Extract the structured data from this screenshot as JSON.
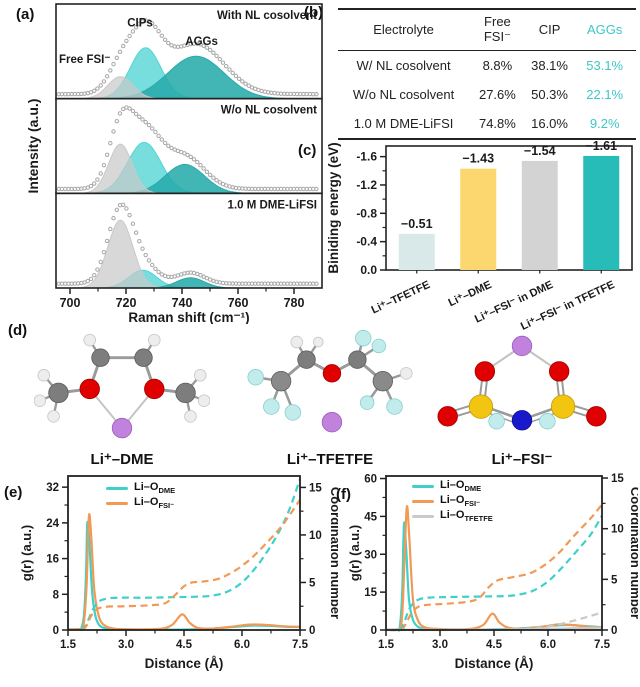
{
  "panel_labels": {
    "a": "(a)",
    "b": "(b)",
    "c": "(c)",
    "d": "(d)",
    "e": "(e)",
    "f": "(f)"
  },
  "table": {
    "headers": [
      "Electrolyte",
      "Free\nFSI⁻",
      "CIP",
      "AGGs"
    ],
    "rows": [
      [
        "W/ NL cosolvent",
        "8.8%",
        "38.1%",
        "53.1%"
      ],
      [
        "W/o NL cosolvent",
        "27.6%",
        "50.3%",
        "22.1%"
      ],
      [
        "1.0 M DME-LiFSI",
        "74.8%",
        "16.0%",
        "9.2%"
      ]
    ],
    "accent_color": "#3ec6c6"
  },
  "molecules": {
    "labels": [
      "Li⁺–DME",
      "Li⁺–TFETFE",
      "Li⁺–FSI⁻"
    ],
    "atom_colors": {
      "carbon": "#7d7d7d",
      "hydrogen": "#ededed",
      "oxygen": "#e00000",
      "lithium": "#c182de",
      "fluorine": "#c2ecec",
      "sulfur": "#f2c511",
      "nitrogen": "#1919cc"
    }
  },
  "chart_data": [
    {
      "id": "raman",
      "type": "area",
      "xlabel": "Raman shift (cm⁻¹)",
      "ylabel": "Intensity (a.u.)",
      "x_range": [
        695,
        790
      ],
      "x_ticks": [
        700,
        720,
        740,
        760,
        780
      ],
      "x_minor_ticks": [
        710,
        730,
        750,
        770
      ],
      "subplots": [
        {
          "label": "With NL cosolvent",
          "label_color": "#18a7a7",
          "envelope_scale": 1.18,
          "peaks": [
            {
              "name": "Free FSI⁻",
              "center": 718,
              "amp": 0.26,
              "sigma": 4.5,
              "color": "#c9c9c9",
              "opacity": 0.72
            },
            {
              "name": "CIPs",
              "center": 727,
              "amp": 0.6,
              "sigma": 5.5,
              "color": "#55d4d4",
              "opacity": 0.8
            },
            {
              "name": "AGGs",
              "center": 745,
              "amp": 0.5,
              "sigma": 10,
              "color": "#28abab",
              "opacity": 0.88
            }
          ],
          "annotations": [
            {
              "text": "Free FSI⁻",
              "color": "#bdbdbd",
              "x": 696,
              "y": 0.42,
              "anchor": "start"
            },
            {
              "text": "CIPs",
              "color": "#3fcfcf",
              "x": 725,
              "y": 0.85,
              "anchor": "middle"
            },
            {
              "text": "AGGs",
              "color": "#17a0a0",
              "x": 747,
              "y": 0.63,
              "anchor": "middle"
            }
          ]
        },
        {
          "label": "W/o NL cosolvent",
          "label_color": "#b5b5b5",
          "envelope_scale": 1.12,
          "peaks": [
            {
              "name": "Free FSI⁻",
              "center": 718,
              "amp": 0.58,
              "sigma": 4.2,
              "color": "#c9c9c9",
              "opacity": 0.72
            },
            {
              "name": "CIPs",
              "center": 726.5,
              "amp": 0.6,
              "sigma": 6,
              "color": "#55d4d4",
              "opacity": 0.8
            },
            {
              "name": "AGGs",
              "center": 741,
              "amp": 0.34,
              "sigma": 7,
              "color": "#28abab",
              "opacity": 0.88
            }
          ],
          "annotations": []
        },
        {
          "label": "1.0 M DME-LiFSI",
          "label_color": "#f5b305",
          "envelope_scale": 1.08,
          "peaks": [
            {
              "name": "Free FSI⁻",
              "center": 718,
              "amp": 0.8,
              "sigma": 4.5,
              "color": "#c9c9c9",
              "opacity": 0.72
            },
            {
              "name": "CIPs",
              "center": 726,
              "amp": 0.21,
              "sigma": 5,
              "color": "#55d4d4",
              "opacity": 0.8
            },
            {
              "name": "AGGs",
              "center": 743,
              "amp": 0.12,
              "sigma": 5,
              "color": "#28abab",
              "opacity": 0.88
            }
          ],
          "annotations": []
        }
      ]
    },
    {
      "id": "binding",
      "type": "bar",
      "ylabel": "Biniding energy (eV)",
      "categories": [
        "Li⁺–TFETFE",
        "Li⁺–DME",
        "Li⁺–FSI⁻ in DME",
        "Li⁺–FSI⁻ in TFETFE"
      ],
      "values": [
        -0.51,
        -1.43,
        -1.54,
        -1.61
      ],
      "value_labels": [
        "−0.51",
        "−1.43",
        "−1.54",
        "−1.61"
      ],
      "bar_colors": [
        "#d9e9e9",
        "#fcd66e",
        "#d3d3d3",
        "#28bcb8"
      ],
      "label_colors": [
        "#aecfd2",
        "#f6c233",
        "#a9a9a9",
        "#0fada9"
      ],
      "y_ticks": [
        "0.0",
        "-0.4",
        "-0.8",
        "-1.2",
        "-1.6"
      ],
      "y_tick_values": [
        0,
        0.4,
        0.8,
        1.2,
        1.6
      ],
      "y_range": [
        0,
        1.75
      ]
    },
    {
      "id": "rdf_e",
      "type": "line",
      "xlabel": "Distance (Å)",
      "ylabel": "g(r) (a.u.)",
      "ylabel_right": "Coordination number",
      "x_range": [
        1.5,
        7.5
      ],
      "x_ticks": [
        "1.5",
        "3.0",
        "4.5",
        "6.0",
        "7.5"
      ],
      "y_left_ticks": [
        0,
        8,
        16,
        24,
        32
      ],
      "y_left_range": [
        0,
        34.5
      ],
      "y_right_ticks": [
        0,
        5,
        10,
        15
      ],
      "y_right_range": [
        0,
        16.2
      ],
      "legend": [
        {
          "main": "Li–O",
          "sub": "DME",
          "color": "#3fd0c9"
        },
        {
          "main": "Li–O",
          "sub": "FSI⁻",
          "color": "#f09a55"
        }
      ],
      "series": [
        {
          "name": "g(r) Li-O DME",
          "axis": "left",
          "style": "solid",
          "color": "#3fd0c9",
          "points": [
            [
              1.5,
              0.15
            ],
            [
              1.75,
              0.2
            ],
            [
              1.85,
              0.5
            ],
            [
              1.92,
              4
            ],
            [
              1.97,
              14
            ],
            [
              2.0,
              24
            ],
            [
              2.05,
              20
            ],
            [
              2.12,
              9
            ],
            [
              2.2,
              3.5
            ],
            [
              2.3,
              1.2
            ],
            [
              2.45,
              0.4
            ],
            [
              2.7,
              0.15
            ],
            [
              3.5,
              0.1
            ],
            [
              4.5,
              0.1
            ],
            [
              5.2,
              0.3
            ],
            [
              5.8,
              0.7
            ],
            [
              6.3,
              1.0
            ],
            [
              6.8,
              0.9
            ],
            [
              7.2,
              0.7
            ],
            [
              7.5,
              0.7
            ]
          ]
        },
        {
          "name": "g(r) Li-O FSI⁻",
          "axis": "left",
          "style": "solid",
          "color": "#f09a55",
          "points": [
            [
              1.5,
              0.15
            ],
            [
              1.8,
              0.2
            ],
            [
              1.9,
              1
            ],
            [
              1.98,
              10
            ],
            [
              2.04,
              25.5
            ],
            [
              2.1,
              21
            ],
            [
              2.18,
              9
            ],
            [
              2.3,
              3
            ],
            [
              2.45,
              1
            ],
            [
              2.7,
              0.3
            ],
            [
              3.2,
              0.15
            ],
            [
              3.9,
              0.3
            ],
            [
              4.2,
              1.2
            ],
            [
              4.45,
              3.5
            ],
            [
              4.65,
              1.6
            ],
            [
              4.85,
              0.5
            ],
            [
              5.2,
              0.3
            ],
            [
              5.7,
              0.7
            ],
            [
              6.2,
              1.2
            ],
            [
              6.7,
              1.1
            ],
            [
              7.1,
              0.8
            ],
            [
              7.5,
              0.7
            ]
          ]
        },
        {
          "name": "CN Li-O DME",
          "axis": "right",
          "style": "dashed",
          "color": "#3fd0c9",
          "points": [
            [
              1.85,
              0
            ],
            [
              1.95,
              0.4
            ],
            [
              2.05,
              1.3
            ],
            [
              2.15,
              2.2
            ],
            [
              2.3,
              3.0
            ],
            [
              2.5,
              3.3
            ],
            [
              2.8,
              3.4
            ],
            [
              3.5,
              3.4
            ],
            [
              4.2,
              3.45
            ],
            [
              4.8,
              3.5
            ],
            [
              5.2,
              3.6
            ],
            [
              5.6,
              4.0
            ],
            [
              6.0,
              5.0
            ],
            [
              6.4,
              6.8
            ],
            [
              6.8,
              9.2
            ],
            [
              7.1,
              11.5
            ],
            [
              7.3,
              13.5
            ],
            [
              7.5,
              15.9
            ]
          ]
        },
        {
          "name": "CN Li-O FSI⁻",
          "axis": "right",
          "style": "dashed",
          "color": "#f09a55",
          "points": [
            [
              1.9,
              0
            ],
            [
              2.0,
              0.6
            ],
            [
              2.1,
              1.5
            ],
            [
              2.25,
              2.2
            ],
            [
              2.5,
              2.45
            ],
            [
              3.0,
              2.5
            ],
            [
              3.6,
              2.6
            ],
            [
              4.0,
              2.8
            ],
            [
              4.25,
              3.6
            ],
            [
              4.5,
              4.6
            ],
            [
              4.7,
              5.0
            ],
            [
              5.0,
              5.1
            ],
            [
              5.4,
              5.4
            ],
            [
              5.8,
              6.2
            ],
            [
              6.2,
              7.4
            ],
            [
              6.6,
              9.0
            ],
            [
              7.0,
              10.8
            ],
            [
              7.25,
              12.2
            ],
            [
              7.5,
              13.7
            ]
          ]
        }
      ]
    },
    {
      "id": "rdf_f",
      "type": "line",
      "xlabel": "Distance (Å)",
      "ylabel": "g(r) (a.u.)",
      "ylabel_right": "Coordination number",
      "x_range": [
        1.5,
        7.5
      ],
      "x_ticks": [
        "1.5",
        "3.0",
        "4.5",
        "6.0",
        "7.5"
      ],
      "y_left_ticks": [
        0,
        15,
        30,
        45,
        60
      ],
      "y_left_range": [
        0,
        61
      ],
      "y_right_ticks": [
        0,
        5,
        10,
        15
      ],
      "y_right_range": [
        0,
        15.2
      ],
      "legend": [
        {
          "main": "Li–O",
          "sub": "DME",
          "color": "#3fd0c9"
        },
        {
          "main": "Li–O",
          "sub": "FSI⁻",
          "color": "#f09a55"
        },
        {
          "main": "Li–O",
          "sub": "TFETFE",
          "color": "#c9c9c9"
        }
      ],
      "series": [
        {
          "name": "g(r) Li-O DME",
          "axis": "left",
          "style": "solid",
          "color": "#3fd0c9",
          "points": [
            [
              1.5,
              0.2
            ],
            [
              1.8,
              0.3
            ],
            [
              1.88,
              1
            ],
            [
              1.95,
              15
            ],
            [
              2.0,
              42
            ],
            [
              2.06,
              32
            ],
            [
              2.14,
              12
            ],
            [
              2.25,
              4
            ],
            [
              2.4,
              1.2
            ],
            [
              2.6,
              0.4
            ],
            [
              3.0,
              0.2
            ],
            [
              4.0,
              0.2
            ],
            [
              5.0,
              0.5
            ],
            [
              5.6,
              1.0
            ],
            [
              6.2,
              1.8
            ],
            [
              6.6,
              2.0
            ],
            [
              7.0,
              1.6
            ],
            [
              7.5,
              1.1
            ]
          ]
        },
        {
          "name": "g(r) Li-O FSI⁻",
          "axis": "left",
          "style": "solid",
          "color": "#f09a55",
          "points": [
            [
              1.5,
              0.2
            ],
            [
              1.85,
              0.3
            ],
            [
              1.95,
              6
            ],
            [
              2.02,
              30
            ],
            [
              2.08,
              49
            ],
            [
              2.15,
              36
            ],
            [
              2.25,
              12
            ],
            [
              2.4,
              3.5
            ],
            [
              2.6,
              1
            ],
            [
              3.0,
              0.4
            ],
            [
              3.8,
              0.4
            ],
            [
              4.2,
              2
            ],
            [
              4.45,
              6.5
            ],
            [
              4.65,
              3
            ],
            [
              4.9,
              0.9
            ],
            [
              5.3,
              0.5
            ],
            [
              5.8,
              1.2
            ],
            [
              6.3,
              2.2
            ],
            [
              6.8,
              1.8
            ],
            [
              7.2,
              1.2
            ],
            [
              7.5,
              1.0
            ]
          ]
        },
        {
          "name": "g(r) Li-O TFETFE",
          "axis": "left",
          "style": "solid",
          "color": "#c9c9c9",
          "points": [
            [
              1.5,
              0.1
            ],
            [
              3.0,
              0.1
            ],
            [
              4.5,
              0.15
            ],
            [
              5.5,
              0.3
            ],
            [
              6.2,
              0.5
            ],
            [
              6.8,
              0.7
            ],
            [
              7.5,
              0.9
            ]
          ]
        },
        {
          "name": "CN Li-O DME",
          "axis": "right",
          "style": "dashed",
          "color": "#3fd0c9",
          "points": [
            [
              1.88,
              0
            ],
            [
              1.98,
              0.5
            ],
            [
              2.08,
              1.5
            ],
            [
              2.2,
              2.4
            ],
            [
              2.4,
              3.0
            ],
            [
              2.7,
              3.2
            ],
            [
              3.2,
              3.25
            ],
            [
              4.0,
              3.3
            ],
            [
              4.8,
              3.35
            ],
            [
              5.2,
              3.5
            ],
            [
              5.6,
              3.9
            ],
            [
              6.0,
              4.8
            ],
            [
              6.4,
              6.2
            ],
            [
              6.8,
              7.8
            ],
            [
              7.2,
              9.5
            ],
            [
              7.5,
              11.3
            ]
          ]
        },
        {
          "name": "CN Li-O FSI⁻",
          "axis": "right",
          "style": "dashed",
          "color": "#f09a55",
          "points": [
            [
              1.95,
              0
            ],
            [
              2.05,
              0.6
            ],
            [
              2.2,
              1.6
            ],
            [
              2.4,
              2.3
            ],
            [
              2.7,
              2.5
            ],
            [
              3.2,
              2.6
            ],
            [
              3.8,
              2.8
            ],
            [
              4.1,
              3.2
            ],
            [
              4.35,
              4.2
            ],
            [
              4.6,
              4.9
            ],
            [
              5.0,
              5.2
            ],
            [
              5.5,
              5.6
            ],
            [
              5.9,
              6.4
            ],
            [
              6.3,
              7.6
            ],
            [
              6.7,
              9.2
            ],
            [
              7.1,
              10.7
            ],
            [
              7.3,
              11.5
            ],
            [
              7.5,
              12.4
            ]
          ]
        },
        {
          "name": "CN Li-O TFETFE",
          "axis": "right",
          "style": "dashed",
          "color": "#c9c9c9",
          "points": [
            [
              1.5,
              0
            ],
            [
              4.5,
              0.02
            ],
            [
              5.3,
              0.1
            ],
            [
              5.8,
              0.25
            ],
            [
              6.3,
              0.55
            ],
            [
              6.8,
              1.0
            ],
            [
              7.2,
              1.4
            ],
            [
              7.5,
              1.75
            ]
          ]
        }
      ]
    }
  ]
}
